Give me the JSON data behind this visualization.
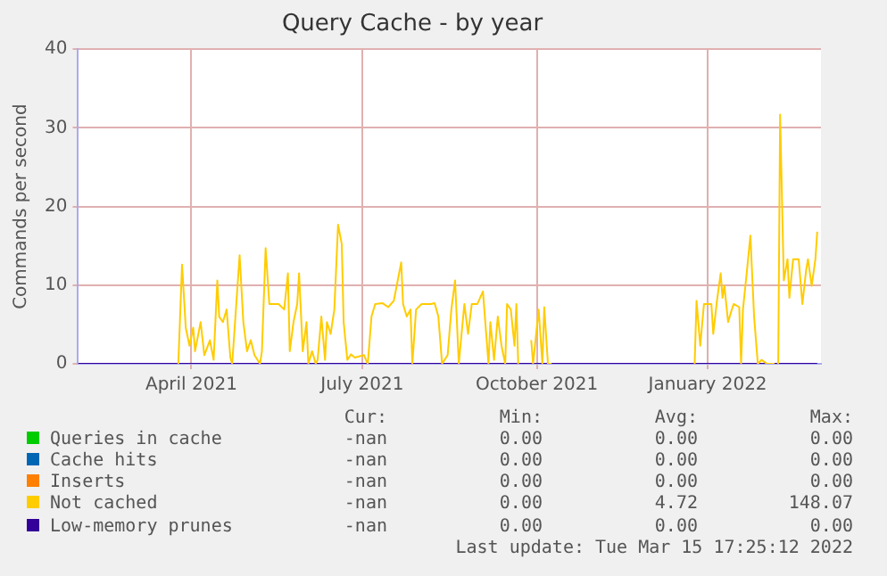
{
  "chart_data": {
    "type": "line",
    "title": "Query Cache - by year",
    "ylabel": "Commands per second",
    "xlim": [
      "2021-02-10",
      "2022-03-17"
    ],
    "xticks": [
      {
        "value": "2021-04-12",
        "label": "April 2021"
      },
      {
        "value": "2021-07-13",
        "label": "July 2021"
      },
      {
        "value": "2021-10-15",
        "label": "October 2021"
      },
      {
        "value": "2022-01-15",
        "label": "January 2022"
      }
    ],
    "ylim": [
      0,
      40
    ],
    "yticks": [
      0,
      10,
      20,
      30,
      40
    ],
    "grid": true,
    "legend": "bottom",
    "marker": "none",
    "series": [
      {
        "name": "Queries in cache",
        "color": "#00cc00"
      },
      {
        "name": "Cache hits",
        "color": "#0066b3"
      },
      {
        "name": "Inserts",
        "color": "#ff8000"
      },
      {
        "name": "Not cached",
        "color": "#ffcc00",
        "x": [
          "2021-04-05",
          "2021-04-07",
          "2021-04-09",
          "2021-04-11",
          "2021-04-13",
          "2021-04-14",
          "2021-04-17",
          "2021-04-19",
          "2021-04-22",
          "2021-04-24",
          "2021-04-26",
          "2021-04-27",
          "2021-04-29",
          "2021-05-01",
          "2021-05-03",
          "2021-05-04",
          "2021-05-08",
          "2021-05-10",
          "2021-05-12",
          "2021-05-14",
          "2021-05-16",
          "2021-05-19",
          "2021-05-20",
          "2021-05-22",
          "2021-05-24",
          "2021-05-29",
          "2021-06-01",
          "2021-06-03",
          "2021-06-04",
          "2021-06-06",
          "2021-06-08",
          "2021-06-09",
          "2021-06-11",
          "2021-06-13",
          "2021-06-14",
          "2021-06-16",
          "2021-06-18",
          "2021-06-19",
          "2021-06-21",
          "2021-06-23",
          "2021-06-24",
          "2021-06-26",
          "2021-06-28",
          "2021-06-30",
          "2021-07-02",
          "2021-07-03",
          "2021-07-05",
          "2021-07-07",
          "2021-07-09",
          "2021-07-14",
          "2021-07-15",
          "2021-07-16",
          "2021-07-18",
          "2021-07-20",
          "2021-07-24",
          "2021-07-27",
          "2021-07-30",
          "2021-08-03",
          "2021-08-04",
          "2021-08-06",
          "2021-08-08",
          "2021-08-09",
          "2021-08-11",
          "2021-08-14",
          "2021-08-19",
          "2021-08-21",
          "2021-08-23",
          "2021-08-25",
          "2021-08-28",
          "2021-08-30",
          "2021-09-01",
          "2021-09-03",
          "2021-09-06",
          "2021-09-08",
          "2021-09-10",
          "2021-09-13",
          "2021-09-16",
          "2021-09-19",
          "2021-09-20",
          "2021-09-22",
          "2021-09-24",
          "2021-09-26",
          "2021-09-28",
          "2021-09-29",
          "2021-10-01",
          "2021-10-03",
          "2021-10-04",
          "2021-10-05",
          "2021-10-07",
          "2021-10-12",
          "2021-10-13",
          "2021-10-16",
          "2021-10-18",
          "2021-10-19",
          "2021-10-21",
          "2021-10-23",
          "2021-10-26",
          "2022-01-08",
          "2022-01-09",
          "2022-01-11",
          "2022-01-13",
          "2022-01-17",
          "2022-01-18",
          "2022-01-20",
          "2022-01-22",
          "2022-01-23",
          "2022-01-24",
          "2022-01-26",
          "2022-01-28",
          "2022-01-29",
          "2022-02-01",
          "2022-02-02",
          "2022-02-03",
          "2022-02-05",
          "2022-02-07",
          "2022-02-09",
          "2022-02-11",
          "2022-02-13",
          "2022-02-16",
          "2022-02-20",
          "2022-02-21",
          "2022-02-22",
          "2022-02-23",
          "2022-02-25",
          "2022-02-27",
          "2022-02-28",
          "2022-03-02",
          "2022-03-05",
          "2022-03-07",
          "2022-03-09",
          "2022-03-10",
          "2022-03-12",
          "2022-03-14",
          "2022-03-15"
        ],
        "values": [
          0,
          12.6,
          4.6,
          2.3,
          4.6,
          1.6,
          5.3,
          1.1,
          3,
          0.5,
          10.6,
          6,
          5.3,
          6.9,
          0.8,
          0,
          13.8,
          5.3,
          1.6,
          3,
          1.1,
          0,
          1.6,
          14.7,
          7.6,
          7.6,
          6.9,
          11.5,
          1.6,
          5.3,
          7.6,
          11.5,
          1.6,
          5.3,
          0,
          1.6,
          0,
          0.5,
          6,
          0.5,
          5.3,
          3.8,
          6.9,
          17.7,
          15.2,
          5.3,
          0.5,
          1.2,
          0.8,
          1.1,
          0.5,
          0,
          6,
          7.6,
          7.7,
          7.2,
          8,
          12.9,
          7.6,
          6,
          6.9,
          0,
          6.9,
          7.6,
          7.6,
          7.7,
          6,
          0,
          1.1,
          6.9,
          10.6,
          0,
          7.6,
          3.8,
          7.6,
          7.6,
          9.2,
          0,
          5.3,
          0.5,
          6,
          2.3,
          0,
          7.6,
          6.9,
          2.3,
          7.6,
          0,
          null,
          3,
          0,
          6.9,
          0,
          7.2,
          0,
          0,
          null,
          0,
          8,
          2.3,
          7.6,
          7.6,
          3.8,
          8,
          11.5,
          8.4,
          9.9,
          5.3,
          6.9,
          7.6,
          7.2,
          0,
          6.9,
          11.5,
          16.3,
          6,
          0,
          0.5,
          0,
          0,
          null,
          0,
          31.7,
          10.6,
          13.3,
          8.4,
          13.3,
          13.3,
          7.6,
          11.9,
          13.3,
          9.9,
          13.3,
          16.8
        ]
      },
      {
        "name": "Low-memory prunes",
        "color": "#330099",
        "x": [
          "2021-02-10",
          "2022-03-15"
        ],
        "values": [
          0,
          0
        ]
      }
    ],
    "annotations": [
      "Cur:",
      "Min:",
      "Avg:",
      "Max:",
      "-nan",
      "0.00",
      "0.00",
      "0.00",
      "-nan",
      "0.00",
      "0.00",
      "0.00",
      "-nan",
      "0.00",
      "0.00",
      "0.00",
      "-nan",
      "0.00",
      "4.72",
      "148.07",
      "-nan",
      "0.00",
      "0.00",
      "0.00",
      "Last update: Tue Mar 15 17:25:12 2022"
    ]
  }
}
